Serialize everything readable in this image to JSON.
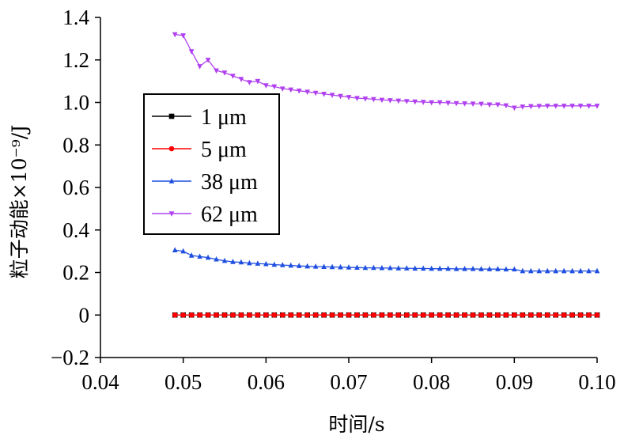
{
  "chart_data": {
    "type": "line",
    "xlabel": "时间/s",
    "ylabel": "粒子动能×10⁻⁹/J",
    "xlim": [
      0.04,
      0.1
    ],
    "ylim": [
      -0.2,
      1.4
    ],
    "x_ticks": [
      "0.04",
      "0.05",
      "0.06",
      "0.07",
      "0.08",
      "0.09",
      "0.10"
    ],
    "y_ticks": [
      "−0.2",
      "0",
      "0.2",
      "0.4",
      "0.6",
      "0.8",
      "1.0",
      "1.2",
      "1.4"
    ],
    "grid": false,
    "legend_position": "center-left",
    "x": [
      0.049,
      0.05,
      0.051,
      0.052,
      0.053,
      0.054,
      0.055,
      0.056,
      0.057,
      0.058,
      0.059,
      0.06,
      0.061,
      0.062,
      0.063,
      0.064,
      0.065,
      0.066,
      0.067,
      0.068,
      0.069,
      0.07,
      0.071,
      0.072,
      0.073,
      0.074,
      0.075,
      0.076,
      0.077,
      0.078,
      0.079,
      0.08,
      0.081,
      0.082,
      0.083,
      0.084,
      0.085,
      0.086,
      0.087,
      0.088,
      0.089,
      0.09,
      0.091,
      0.092,
      0.093,
      0.094,
      0.095,
      0.096,
      0.097,
      0.098,
      0.099,
      0.1
    ],
    "series": [
      {
        "name": "1 μm",
        "color": "#000000",
        "marker": "square",
        "values": [
          0,
          0,
          0,
          0,
          0,
          0,
          0,
          0,
          0,
          0,
          0,
          0,
          0,
          0,
          0,
          0,
          0,
          0,
          0,
          0,
          0,
          0,
          0,
          0,
          0,
          0,
          0,
          0,
          0,
          0,
          0,
          0,
          0,
          0,
          0,
          0,
          0,
          0,
          0,
          0,
          0,
          0,
          0,
          0,
          0,
          0,
          0,
          0,
          0,
          0,
          0,
          0
        ]
      },
      {
        "name": "5 μm",
        "color": "#ff0000",
        "marker": "circle",
        "values": [
          0,
          0,
          0,
          0,
          0,
          0,
          0,
          0,
          0,
          0,
          0,
          0,
          0,
          0,
          0,
          0,
          0,
          0,
          0,
          0,
          0,
          0,
          0,
          0,
          0,
          0,
          0,
          0,
          0,
          0,
          0,
          0,
          0,
          0,
          0,
          0,
          0,
          0,
          0,
          0,
          0,
          0,
          0,
          0,
          0,
          0,
          0,
          0,
          0,
          0,
          0,
          0
        ]
      },
      {
        "name": "38 μm",
        "color": "#1f4fe0",
        "marker": "triangle-up",
        "values": [
          0.305,
          0.3,
          0.28,
          0.275,
          0.27,
          0.262,
          0.255,
          0.25,
          0.248,
          0.244,
          0.242,
          0.24,
          0.237,
          0.235,
          0.233,
          0.231,
          0.229,
          0.228,
          0.227,
          0.226,
          0.225,
          0.224,
          0.223,
          0.222,
          0.222,
          0.221,
          0.221,
          0.22,
          0.22,
          0.219,
          0.219,
          0.218,
          0.218,
          0.218,
          0.217,
          0.217,
          0.217,
          0.216,
          0.216,
          0.216,
          0.215,
          0.215,
          0.207,
          0.207,
          0.207,
          0.207,
          0.207,
          0.207,
          0.207,
          0.207,
          0.207,
          0.207
        ]
      },
      {
        "name": "62 μm",
        "color": "#b040f0",
        "marker": "triangle-down",
        "values": [
          1.32,
          1.315,
          1.24,
          1.17,
          1.2,
          1.15,
          1.14,
          1.125,
          1.11,
          1.095,
          1.1,
          1.08,
          1.075,
          1.065,
          1.06,
          1.055,
          1.05,
          1.045,
          1.04,
          1.035,
          1.03,
          1.025,
          1.02,
          1.018,
          1.015,
          1.012,
          1.01,
          1.008,
          1.006,
          1.004,
          1.002,
          1.0,
          1.0,
          0.998,
          0.996,
          0.995,
          0.994,
          0.993,
          0.99,
          0.99,
          0.986,
          0.975,
          0.98,
          0.982,
          0.983,
          0.984,
          0.984,
          0.984,
          0.984,
          0.984,
          0.984,
          0.984
        ]
      }
    ]
  }
}
